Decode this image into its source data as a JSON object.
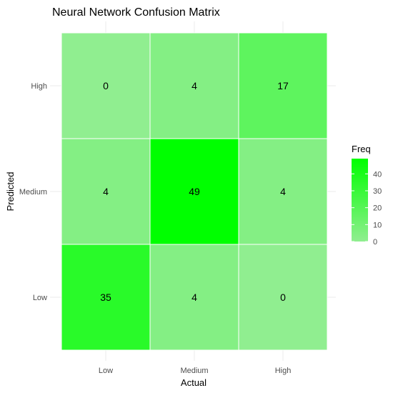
{
  "chart_data": {
    "type": "heatmap",
    "title": "Neural Network Confusion Matrix",
    "xlabel": "Actual",
    "ylabel": "Predicted",
    "x_categories": [
      "Low",
      "Medium",
      "High"
    ],
    "y_categories": [
      "Low",
      "Medium",
      "High"
    ],
    "cells": [
      {
        "actual": "Low",
        "predicted": "Low",
        "value": 35
      },
      {
        "actual": "Medium",
        "predicted": "Low",
        "value": 4
      },
      {
        "actual": "High",
        "predicted": "Low",
        "value": 0
      },
      {
        "actual": "Low",
        "predicted": "Medium",
        "value": 4
      },
      {
        "actual": "Medium",
        "predicted": "Medium",
        "value": 49
      },
      {
        "actual": "High",
        "predicted": "Medium",
        "value": 4
      },
      {
        "actual": "Low",
        "predicted": "High",
        "value": 0
      },
      {
        "actual": "Medium",
        "predicted": "High",
        "value": 4
      },
      {
        "actual": "High",
        "predicted": "High",
        "value": 17
      }
    ],
    "legend": {
      "title": "Freq",
      "ticks": [
        0,
        10,
        20,
        30,
        40
      ],
      "min": 0,
      "max": 49,
      "placement": "right"
    },
    "colors": {
      "low": "#90ee90",
      "high": "#00ff00",
      "grid": "#ebebeb",
      "text": "#000000",
      "axis_text": "#4d4d4d"
    }
  }
}
